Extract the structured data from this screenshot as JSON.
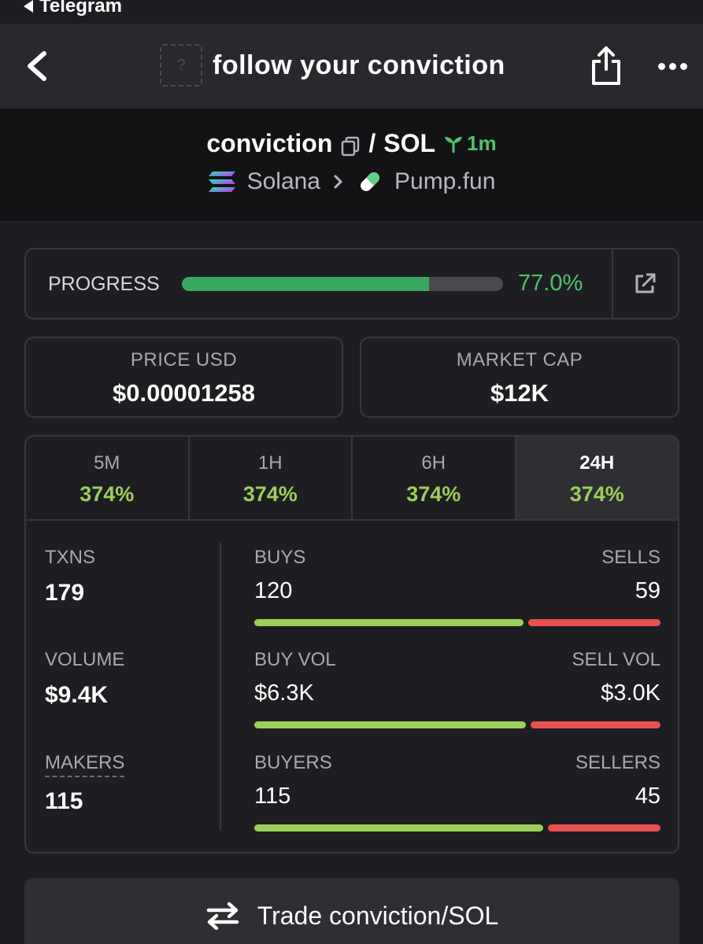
{
  "status": {
    "back_app_label": "Telegram"
  },
  "header": {
    "title": "follow your conviction",
    "thumb_placeholder": "?"
  },
  "pair": {
    "base": "conviction",
    "separator": "/",
    "quote": "SOL",
    "age": "1m",
    "chain": "Solana",
    "dex": "Pump.fun"
  },
  "progress": {
    "label": "PROGRESS",
    "value_text": "77.0%",
    "value": 77.0
  },
  "price": {
    "label": "PRICE USD",
    "value": "$0.00001258"
  },
  "market_cap": {
    "label": "MARKET CAP",
    "value": "$12K"
  },
  "tabs": [
    {
      "label": "5M",
      "value": "374%"
    },
    {
      "label": "1H",
      "value": "374%"
    },
    {
      "label": "6H",
      "value": "374%"
    },
    {
      "label": "24H",
      "value": "374%",
      "active": true
    }
  ],
  "stats": {
    "txns": {
      "label": "TXNS",
      "value": "179"
    },
    "volume": {
      "label": "VOLUME",
      "value": "$9.4K"
    },
    "makers": {
      "label": "MAKERS",
      "value": "115"
    }
  },
  "splits": {
    "buys_sells": {
      "left_label": "BUYS",
      "right_label": "SELLS",
      "left_value": "120",
      "right_value": "59",
      "left": 120,
      "right": 59
    },
    "volumes": {
      "left_label": "BUY VOL",
      "right_label": "SELL VOL",
      "left_value": "$6.3K",
      "right_value": "$3.0K",
      "left": 6.3,
      "right": 3.0
    },
    "buyers_sellers": {
      "left_label": "BUYERS",
      "right_label": "SELLERS",
      "left_value": "115",
      "right_value": "45",
      "left": 115,
      "right": 45
    }
  },
  "trade_button": {
    "label": "Trade conviction/SOL"
  },
  "colors": {
    "green": "#4fc36a",
    "lime": "#9ccf5a",
    "red": "#e85050",
    "bar_fill": "#38a860"
  }
}
